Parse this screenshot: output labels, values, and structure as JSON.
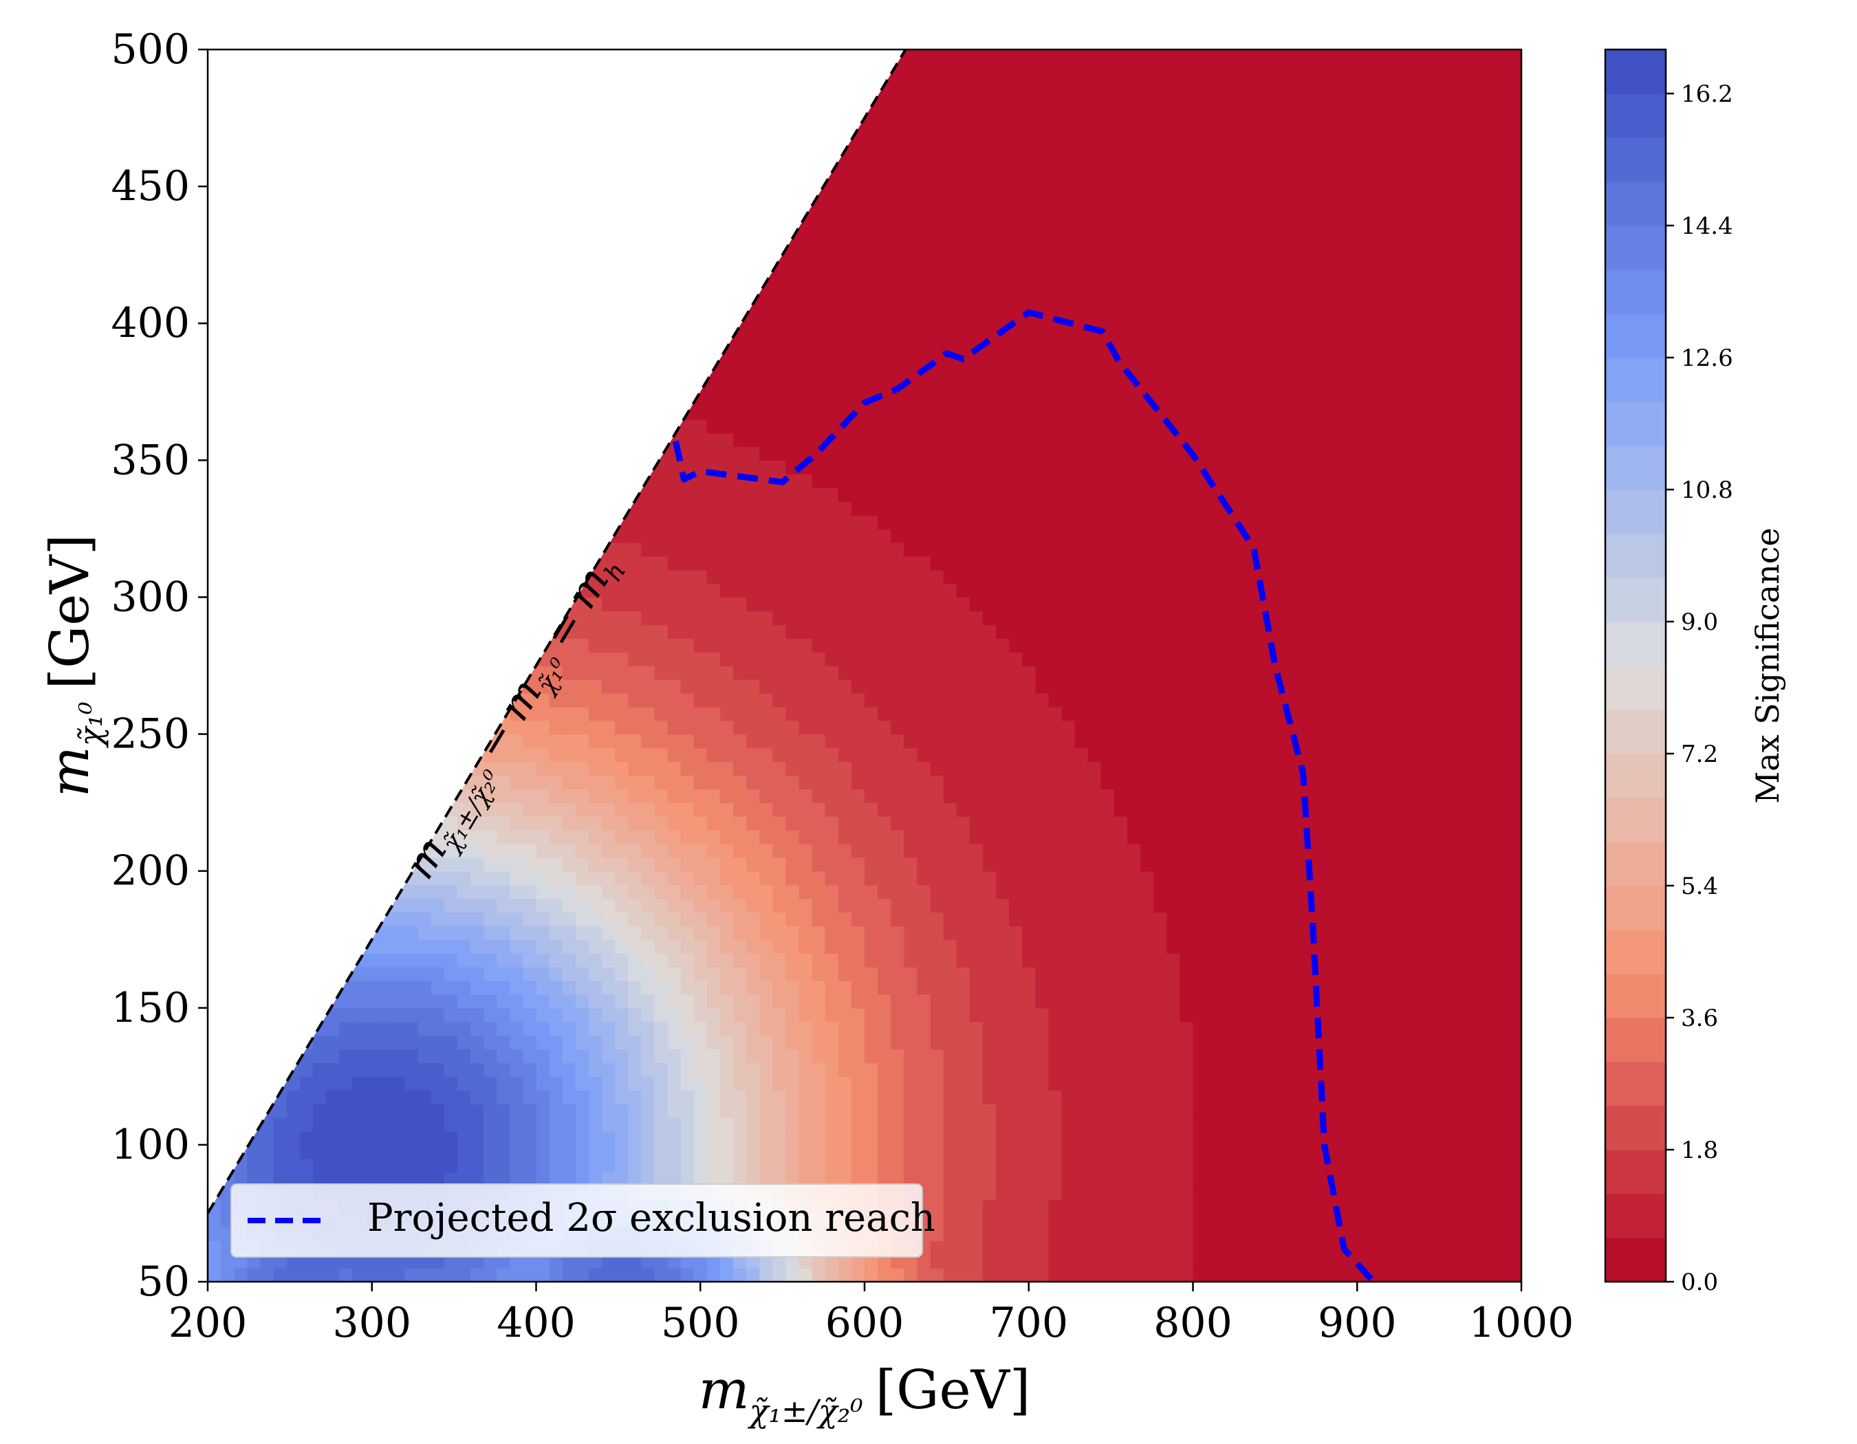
{
  "chart_data": {
    "type": "heatmap",
    "title": "",
    "xlabel": {
      "base": "m",
      "sub": "χ̃₁±/χ̃₂⁰",
      "unit": "[GeV]"
    },
    "ylabel": {
      "base": "m",
      "sub": "χ̃₁⁰",
      "unit": "[GeV]"
    },
    "xlim": [
      200,
      1000
    ],
    "ylim": [
      50,
      500
    ],
    "x_ticks": [
      "200",
      "300",
      "400",
      "500",
      "600",
      "700",
      "800",
      "900",
      "1000"
    ],
    "y_ticks": [
      "50",
      "100",
      "150",
      "200",
      "250",
      "300",
      "350",
      "400",
      "450",
      "500"
    ],
    "colorbar": {
      "label": "Max Significance",
      "min": 0,
      "max": 16.8,
      "levels": 28,
      "ticks": [
        "0.0",
        "1.8",
        "3.6",
        "5.4",
        "7.2",
        "9.0",
        "10.8",
        "12.6",
        "14.4",
        "16.2"
      ],
      "colormap": "coolwarm_r"
    },
    "significance_peaks": [
      {
        "x": 305,
        "y": 98,
        "value": 16.4
      },
      {
        "x": 262,
        "y": 50,
        "value": 15.0
      },
      {
        "x": 450,
        "y": 50,
        "value": 15.0
      }
    ],
    "kinematic_line": {
      "label": "m_{χ̃₁±/χ̃₂⁰} − m_{χ̃₁⁰} = m_h",
      "label_parts": {
        "m1": "m",
        "s1": "χ̃₁±/χ̃₂⁰",
        "op": "−",
        "m2": "m",
        "s2": "χ̃₁⁰",
        "eq": "=",
        "m3": "m",
        "s3": "h"
      },
      "offset_gev": 125,
      "style": "black dashed"
    },
    "exclusion_contour": {
      "name": "Projected 2σ exclusion reach",
      "color": "#0000ff",
      "points": [
        [
          485,
          357
        ],
        [
          490,
          343
        ],
        [
          500,
          346
        ],
        [
          550,
          342
        ],
        [
          570,
          352
        ],
        [
          600,
          371
        ],
        [
          620,
          376
        ],
        [
          650,
          389
        ],
        [
          660,
          387
        ],
        [
          700,
          404
        ],
        [
          745,
          397
        ],
        [
          755,
          386
        ],
        [
          800,
          352
        ],
        [
          837,
          318
        ],
        [
          850,
          275
        ],
        [
          867,
          236
        ],
        [
          873,
          180
        ],
        [
          880,
          100
        ],
        [
          892,
          62
        ],
        [
          910,
          50
        ]
      ]
    },
    "legend": {
      "entries": [
        "Projected 2σ exclusion reach"
      ],
      "placement": "lower-left"
    }
  }
}
